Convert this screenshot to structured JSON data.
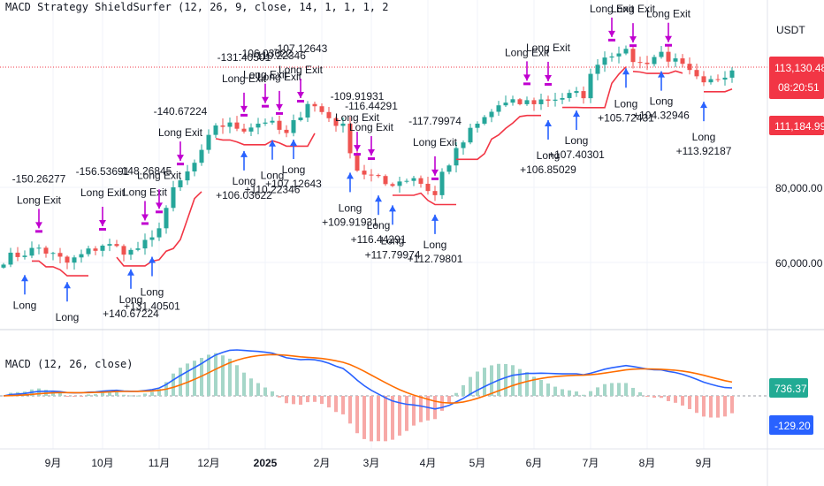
{
  "price_pane": {
    "title": "MACD Strategy  ShieldSurfer (12, 26, 9, close, 14, 1, 1, 1, 2",
    "currency": "USDT",
    "price_ticks": [
      "80,000.00",
      "60,000.00"
    ],
    "last_price": {
      "value": "113,130.48",
      "countdown": "08:20:51",
      "color": "#f23645"
    },
    "stop_price": {
      "value": "111,184.99",
      "color": "#f23645"
    },
    "entry_label": "Long",
    "exit_label": "Long Exit",
    "entries": [
      {
        "t": 3,
        "profit": ""
      },
      {
        "t": 9,
        "profit": ""
      },
      {
        "t": 18,
        "profit": "+140.67224"
      },
      {
        "t": 21,
        "profit": "+131.40501"
      },
      {
        "t": 34,
        "profit": "+106.03622"
      },
      {
        "t": 38,
        "profit": "+110.22346"
      },
      {
        "t": 41,
        "profit": "+107.12643"
      },
      {
        "t": 49,
        "profit": "+109.91931"
      },
      {
        "t": 53,
        "profit": "+116.44291"
      },
      {
        "t": 55,
        "profit": "+117.79974"
      },
      {
        "t": 61,
        "profit": "+112.79801"
      },
      {
        "t": 77,
        "profit": "+106.85029"
      },
      {
        "t": 81,
        "profit": "+107.40301"
      },
      {
        "t": 88,
        "profit": "+105.72431"
      },
      {
        "t": 93,
        "profit": "+104.32946"
      },
      {
        "t": 99,
        "profit": "+113.92187"
      }
    ],
    "exits": [
      {
        "t": 5,
        "pnl": "-150.26277"
      },
      {
        "t": 14,
        "pnl": "-156.53691"
      },
      {
        "t": 20,
        "pnl": "-148.26845"
      },
      {
        "t": 22,
        "pnl": ""
      },
      {
        "t": 25,
        "pnl": "-140.67224"
      },
      {
        "t": 34,
        "pnl": "-131.40501"
      },
      {
        "t": 37,
        "pnl": "-106.03622"
      },
      {
        "t": 39,
        "pnl": "-110.22346"
      },
      {
        "t": 42,
        "pnl": "-107.12643"
      },
      {
        "t": 50,
        "pnl": "-109.91931"
      },
      {
        "t": 52,
        "pnl": "-116.44291"
      },
      {
        "t": 61,
        "pnl": "-117.79974"
      },
      {
        "t": 74,
        "pnl": ""
      },
      {
        "t": 77,
        "pnl": ""
      },
      {
        "t": 86,
        "pnl": ""
      },
      {
        "t": 89,
        "pnl": ""
      },
      {
        "t": 94,
        "pnl": ""
      }
    ]
  },
  "macd_pane": {
    "title": "MACD (12, 26, close)",
    "macd_tag": {
      "value": "736.37",
      "color": "#22ab94"
    },
    "signal_tag": {
      "value": "-129.20",
      "color": "#2962ff"
    }
  },
  "time_axis": {
    "labels": [
      {
        "t": 7,
        "text": "9月"
      },
      {
        "t": 14,
        "text": "10月"
      },
      {
        "t": 22,
        "text": "11月"
      },
      {
        "t": 29,
        "text": "12月"
      },
      {
        "t": 37,
        "text": "2025",
        "bold": true
      },
      {
        "t": 45,
        "text": "2月"
      },
      {
        "t": 52,
        "text": "3月"
      },
      {
        "t": 60,
        "text": "4月"
      },
      {
        "t": 67,
        "text": "5月"
      },
      {
        "t": 75,
        "text": "6月"
      },
      {
        "t": 83,
        "text": "7月"
      },
      {
        "t": 91,
        "text": "8月"
      },
      {
        "t": 99,
        "text": "9月"
      }
    ]
  },
  "colors": {
    "up": "#26a69a",
    "down": "#ef5350",
    "trail": "#f23645",
    "entry_arrow": "#2962ff",
    "exit_arrow": "#c000d0",
    "macd_line": "#2962ff",
    "signal_line": "#ff6d00"
  }
}
